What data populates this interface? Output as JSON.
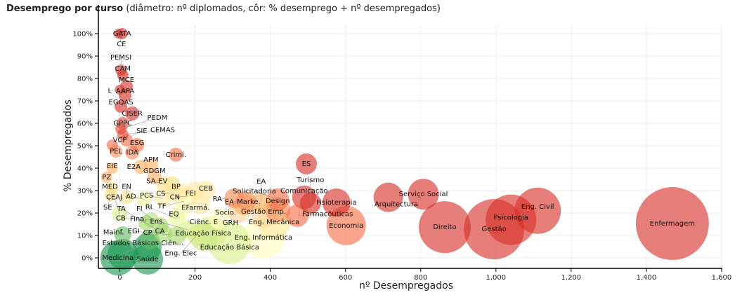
{
  "header": {
    "title_bold": "Desemprego por curso",
    "title_rest": " (diâmetro: nº diplomados, côr: % desemprego + nº desempregados)"
  },
  "chart_data": {
    "type": "scatter",
    "title": "Desemprego por curso",
    "subtitle": "(diâmetro: nº diplomados, côr: % desemprego + nº desempregados)",
    "xlabel": "nº Desempregados",
    "ylabel": "% Desempregados",
    "xlim": [
      -60,
      1600
    ],
    "ylim": [
      -5,
      105
    ],
    "xticks": [
      0,
      200,
      400,
      600,
      800,
      1000,
      1200,
      1400,
      1600
    ],
    "xtick_labels": [
      "0",
      "200",
      "400",
      "600",
      "800",
      "1,000",
      "1,200",
      "1,400",
      "1,600"
    ],
    "yticks": [
      0,
      10,
      20,
      30,
      40,
      50,
      60,
      70,
      80,
      90,
      100
    ],
    "ytick_labels": [
      "0%",
      "10%",
      "20%",
      "30%",
      "40%",
      "50%",
      "60%",
      "70%",
      "80%",
      "90%",
      "100%"
    ],
    "grid": true,
    "size_encoding": "nº diplomados (relative)",
    "color_scale": [
      "#d73027",
      "#fc8d59",
      "#fee08b",
      "#ffffbf",
      "#d9ef8b",
      "#91cf60",
      "#1a9850"
    ],
    "points": [
      {
        "label": "Enfermagem",
        "x": 1469,
        "y": 15.3,
        "size": 52,
        "color": "#d73027"
      },
      {
        "label": "Gestão",
        "x": 995,
        "y": 12.8,
        "size": 43,
        "color": "#d73027"
      },
      {
        "label": "Direito",
        "x": 864,
        "y": 13.7,
        "size": 37,
        "color": "#d73027"
      },
      {
        "label": "Psicologia",
        "x": 1040,
        "y": 17,
        "size": 36,
        "color": "#d73027"
      },
      {
        "label": "Eng. Civil",
        "x": 1111,
        "y": 21,
        "size": 33,
        "color": "#d73027"
      },
      {
        "label": "Eng. Informática",
        "x": 382,
        "y": 9,
        "size": 30,
        "color": "#ffffbf"
      },
      {
        "label": "Educação Básica",
        "x": 292,
        "y": 6.6,
        "size": 30,
        "color": "#d9ef8b"
      },
      {
        "label": "Economia",
        "x": 602,
        "y": 14.4,
        "size": 28,
        "color": "#f46d43"
      },
      {
        "label": "Medicina",
        "x": -5,
        "y": 0,
        "size": 25,
        "color": "#1a9850"
      },
      {
        "label": "Eng. Mecânica",
        "x": 410,
        "y": 16,
        "size": 24,
        "color": "#fee8a0"
      },
      {
        "label": "Educação Física",
        "x": 240,
        "y": 11,
        "size": 24,
        "color": "#d9ef8b"
      },
      {
        "label": "Serviço Social",
        "x": 807,
        "y": 28.4,
        "size": 22,
        "color": "#d73027"
      },
      {
        "label": "Arquitectura",
        "x": 714,
        "y": 27,
        "size": 21,
        "color": "#d73027"
      },
      {
        "label": "Saúde",
        "x": 74,
        "y": -0.6,
        "size": 22,
        "color": "#1a9850"
      },
      {
        "label": "Estudos Básicos Ciên...",
        "x": 8,
        "y": 1.6,
        "size": 22,
        "color": "#1a9850"
      },
      {
        "label": "CP",
        "x": 74,
        "y": 4.7,
        "size": 20,
        "color": "#1a9850"
      },
      {
        "label": "Fisioterapia",
        "x": 576,
        "y": 24.7,
        "size": 20,
        "color": "#d73027"
      },
      {
        "label": "Ciênc. E",
        "x": 223,
        "y": 9.4,
        "size": 20,
        "color": "#c6e77f"
      },
      {
        "label": "Gestão Emp.",
        "x": 382,
        "y": 18.8,
        "size": 18,
        "color": "#fdd49e"
      },
      {
        "label": "Design",
        "x": 420,
        "y": 21.5,
        "size": 18,
        "color": "#fc8d59"
      },
      {
        "label": "Comunicação",
        "x": 490,
        "y": 27,
        "size": 17,
        "color": "#d73027"
      },
      {
        "label": "Farmacêuticas",
        "x": 472,
        "y": 18.8,
        "size": 16,
        "color": "#f46d43"
      },
      {
        "label": "Solicitadoria",
        "x": 420,
        "y": 26,
        "size": 16,
        "color": "#f46d43"
      },
      {
        "label": "Turismo",
        "x": 507,
        "y": 24.4,
        "size": 15,
        "color": "#d73027"
      },
      {
        "label": "ES",
        "x": 496,
        "y": 41.9,
        "size": 15,
        "color": "#d73027"
      },
      {
        "label": "Socio.",
        "x": 317,
        "y": 20.6,
        "size": 16,
        "color": "#fdd49e"
      },
      {
        "label": "Marke.",
        "x": 330,
        "y": 23.7,
        "size": 15,
        "color": "#fdae61"
      },
      {
        "label": "EA",
        "x": 376,
        "y": 24.7,
        "size": 14,
        "color": "#fdae61"
      },
      {
        "label": "EA",
        "x": 336,
        "y": 25.3,
        "size": 14,
        "color": "#fc8d59"
      },
      {
        "label": "RA",
        "x": 304,
        "y": 26.6,
        "size": 14,
        "color": "#fc8d59"
      },
      {
        "label": "GRH",
        "x": 263,
        "y": 17.5,
        "size": 15,
        "color": "#ffffbf"
      },
      {
        "label": "CEB",
        "x": 229,
        "y": 30,
        "size": 14,
        "color": "#fee8a0"
      },
      {
        "label": "FEI",
        "x": 201,
        "y": 30,
        "size": 13,
        "color": "#fee8a0"
      },
      {
        "label": "EFarmá.",
        "x": 214,
        "y": 23.7,
        "size": 14,
        "color": "#fee8a0"
      },
      {
        "label": "CN",
        "x": 182,
        "y": 27.5,
        "size": 13,
        "color": "#fee8a0"
      },
      {
        "label": "TF",
        "x": 171,
        "y": 25.3,
        "size": 12,
        "color": "#ffffbf"
      },
      {
        "label": "BP",
        "x": 164,
        "y": 29.4,
        "size": 12,
        "color": "#fee8a0"
      },
      {
        "label": "CS",
        "x": 145,
        "y": 29,
        "size": 12,
        "color": "#fee8a0"
      },
      {
        "label": "EV",
        "x": 139,
        "y": 33,
        "size": 11,
        "color": "#fee08b"
      },
      {
        "label": "SA",
        "x": 117,
        "y": 33,
        "size": 11,
        "color": "#fee08b"
      },
      {
        "label": "EQ",
        "x": 164,
        "y": 21.3,
        "size": 13,
        "color": "#ffffbf"
      },
      {
        "label": "RI",
        "x": 152,
        "y": 17.5,
        "size": 12,
        "color": "#e6f598"
      },
      {
        "label": "Ens.",
        "x": 182,
        "y": 12.5,
        "size": 13,
        "color": "#d9ef8b"
      },
      {
        "label": "Eng. Elec",
        "x": 205,
        "y": 10.3,
        "size": 14,
        "color": "#d9ef8b"
      },
      {
        "label": "EGI",
        "x": 152,
        "y": 10,
        "size": 13,
        "color": "#a6d96a"
      },
      {
        "label": "Fina.",
        "x": 115,
        "y": 11,
        "size": 13,
        "color": "#a6d96a"
      },
      {
        "label": "CA",
        "x": 79,
        "y": 8.1,
        "size": 14,
        "color": "#66bd63"
      },
      {
        "label": "FI",
        "x": 107,
        "y": 14.4,
        "size": 12,
        "color": "#a6d96a"
      },
      {
        "label": "CB",
        "x": 83,
        "y": 16.9,
        "size": 11,
        "color": "#b8e186"
      },
      {
        "label": "TA",
        "x": 70,
        "y": 15.6,
        "size": 11,
        "color": "#a6d96a"
      },
      {
        "label": "PCS",
        "x": 115,
        "y": 26.6,
        "size": 12,
        "color": "#fee8a0"
      },
      {
        "label": "AD",
        "x": 64,
        "y": 26.2,
        "size": 11,
        "color": "#f7f7a0"
      },
      {
        "label": "GDGM",
        "x": 92,
        "y": 36,
        "size": 10,
        "color": "#fdae61"
      },
      {
        "label": "APM",
        "x": 83,
        "y": 41,
        "size": 10,
        "color": "#fdae61"
      },
      {
        "label": "E2A",
        "x": 55,
        "y": 40.6,
        "size": 10,
        "color": "#fdae61"
      },
      {
        "label": "IDA",
        "x": 33,
        "y": 47,
        "size": 10,
        "color": "#fc8d59"
      },
      {
        "label": "ESG",
        "x": 46,
        "y": 50.3,
        "size": 10,
        "color": "#f46d43"
      },
      {
        "label": "Crimi.",
        "x": 149,
        "y": 46,
        "size": 10,
        "color": "#f46d43"
      },
      {
        "label": "Mainf.",
        "x": 8,
        "y": 10.3,
        "size": 12,
        "color": "#66bd63"
      },
      {
        "label": "CEAJ",
        "x": 0,
        "y": 19.7,
        "size": 11,
        "color": "#d9ef8b"
      },
      {
        "label": "EN",
        "x": 18,
        "y": 27,
        "size": 10,
        "color": "#fee08b"
      },
      {
        "label": "MED",
        "x": -20,
        "y": 31,
        "size": 9,
        "color": "#fee08b"
      },
      {
        "label": "SE",
        "x": -25,
        "y": 28,
        "size": 9,
        "color": "#fee08b"
      },
      {
        "label": "PZ",
        "x": -35,
        "y": 36,
        "size": 8,
        "color": "#fdae61"
      },
      {
        "label": "EIE",
        "x": -20,
        "y": 40,
        "size": 8,
        "color": "#fdae61"
      },
      {
        "label": "PEL",
        "x": -10,
        "y": 47.5,
        "size": 9,
        "color": "#fc8d59"
      },
      {
        "label": "SIE",
        "x": -20,
        "y": 50.3,
        "size": 8,
        "color": "#f46d43"
      },
      {
        "label": "VCP",
        "x": 18,
        "y": 52.5,
        "size": 9,
        "color": "#f46d43"
      },
      {
        "label": "CEMAS",
        "x": 8,
        "y": 55,
        "size": 8,
        "color": "#e34a33"
      },
      {
        "label": "PEDM",
        "x": 3,
        "y": 57.5,
        "size": 8,
        "color": "#e34a33"
      },
      {
        "label": "GPPC",
        "x": 8,
        "y": 60,
        "size": 9,
        "color": "#e34a33"
      },
      {
        "label": "CISER",
        "x": 33,
        "y": 64.4,
        "size": 10,
        "color": "#d73027"
      },
      {
        "label": "EGQAS",
        "x": 3,
        "y": 67.5,
        "size": 9,
        "color": "#d73027"
      },
      {
        "label": "AAPA",
        "x": 14,
        "y": 72.5,
        "size": 9,
        "color": "#d73027"
      },
      {
        "label": "L",
        "x": 0,
        "y": 75,
        "size": 7,
        "color": "#d73027"
      },
      {
        "label": "MCE",
        "x": 18,
        "y": 76.6,
        "size": 9,
        "color": "#d73027"
      },
      {
        "label": "CAM",
        "x": 8,
        "y": 81.5,
        "size": 8,
        "color": "#d73027"
      },
      {
        "label": "PEMSI",
        "x": 3,
        "y": 83.7,
        "size": 8,
        "color": "#d73027"
      },
      {
        "label": "CE",
        "x": -3,
        "y": 100,
        "size": 7,
        "color": "#d73027"
      },
      {
        "label": "GATA",
        "x": 6,
        "y": 100,
        "size": 8,
        "color": "#d73027"
      }
    ]
  }
}
